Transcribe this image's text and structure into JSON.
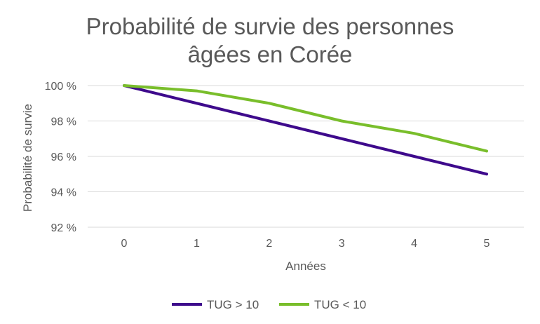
{
  "chart_data": {
    "type": "line",
    "title_lines": [
      "Probabilité de survie des personnes",
      "âgées en Corée"
    ],
    "xlabel": "Années",
    "ylabel": "Probabilité de survie",
    "x": [
      0,
      1,
      2,
      3,
      4,
      5
    ],
    "x_tick_labels": [
      "0",
      "1",
      "2",
      "3",
      "4",
      "5"
    ],
    "ylim": [
      92,
      100
    ],
    "y_ticks": [
      100,
      98,
      96,
      94,
      92
    ],
    "y_tick_labels": [
      "100 %",
      "98 %",
      "96 %",
      "94 %",
      "92 %"
    ],
    "grid": true,
    "legend_position": "bottom",
    "series": [
      {
        "name": "TUG > 10",
        "color": "#3e0a8c",
        "values": [
          100,
          99.0,
          98.0,
          97.0,
          96.0,
          95.0
        ]
      },
      {
        "name": "TUG < 10",
        "color": "#79be2b",
        "values": [
          100,
          99.7,
          99.0,
          98.0,
          97.3,
          96.3
        ]
      }
    ]
  }
}
